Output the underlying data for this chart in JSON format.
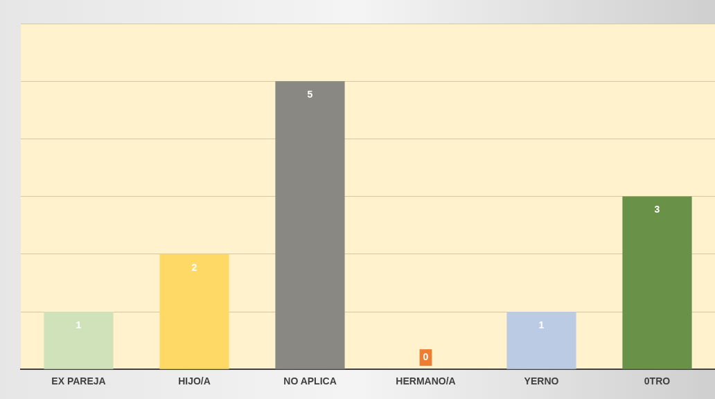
{
  "chart_data": {
    "type": "bar",
    "categories": [
      "EX PAREJA",
      "HIJO/A",
      "NO APLICA",
      "HERMANO/A",
      "YERNO",
      "0TRO"
    ],
    "values": [
      1,
      2,
      5,
      0,
      1,
      3
    ],
    "colors": [
      "#cfe2b9",
      "#ffd966",
      "#8a8883",
      "#ed7d31",
      "#bccbe4",
      "#6a9148"
    ],
    "ylim": [
      0,
      6
    ],
    "yticks": [
      {
        "value": 0,
        "label": null
      },
      {
        "value": 1,
        "label": null
      },
      {
        "value": 2,
        "label": null
      },
      {
        "value": 3,
        "label": null
      },
      {
        "value": 4,
        "label": null
      },
      {
        "value": 5,
        "label": null
      },
      {
        "value": 6,
        "label": null
      }
    ],
    "tick_labels": "x",
    "grid": "y",
    "legend": false,
    "data_labels": true
  }
}
